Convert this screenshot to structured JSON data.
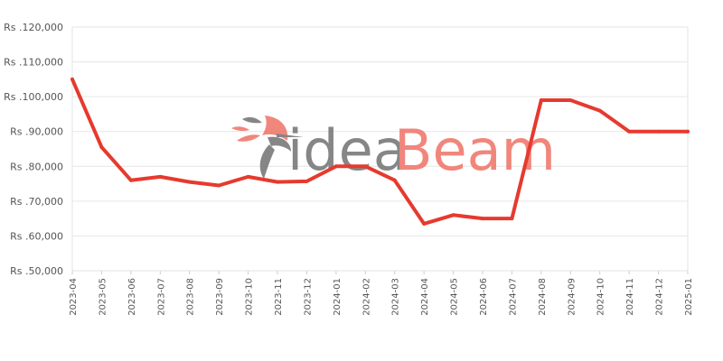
{
  "watermark": {
    "part1": "idea",
    "part2": "Beam"
  },
  "chart_data": {
    "type": "line",
    "x": [
      "2023-04",
      "2023-05",
      "2023-06",
      "2023-07",
      "2023-08",
      "2023-09",
      "2023-10",
      "2023-11",
      "2023-12",
      "2024-01",
      "2024-02",
      "2024-03",
      "2024-04",
      "2024-05",
      "2024-06",
      "2024-07",
      "2024-08",
      "2024-09",
      "2024-10",
      "2024-11",
      "2024-12",
      "2025-01"
    ],
    "series": [
      {
        "values": [
          105000,
          85500,
          76000,
          77000,
          75500,
          74500,
          77000,
          75500,
          75700,
          80000,
          80000,
          76000,
          63500,
          66000,
          65000,
          65000,
          99000,
          99000,
          96000,
          90000,
          90000,
          90000
        ],
        "color": "#e63a2e"
      }
    ],
    "yticks": [
      50000,
      60000,
      70000,
      80000,
      90000,
      100000,
      110000,
      120000
    ],
    "ytick_labels": [
      "Rs .50,000",
      "Rs .60,000",
      "Rs .70,000",
      "Rs .80,000",
      "Rs .90,000",
      "Rs .100,000",
      "Rs .110,000",
      "Rs .120,000"
    ],
    "ylim": [
      50000,
      120000
    ],
    "grid": true,
    "colors": {
      "line": "#e63a2e",
      "grid": "#e6e6e6",
      "frame": "#e3e3e3"
    }
  }
}
